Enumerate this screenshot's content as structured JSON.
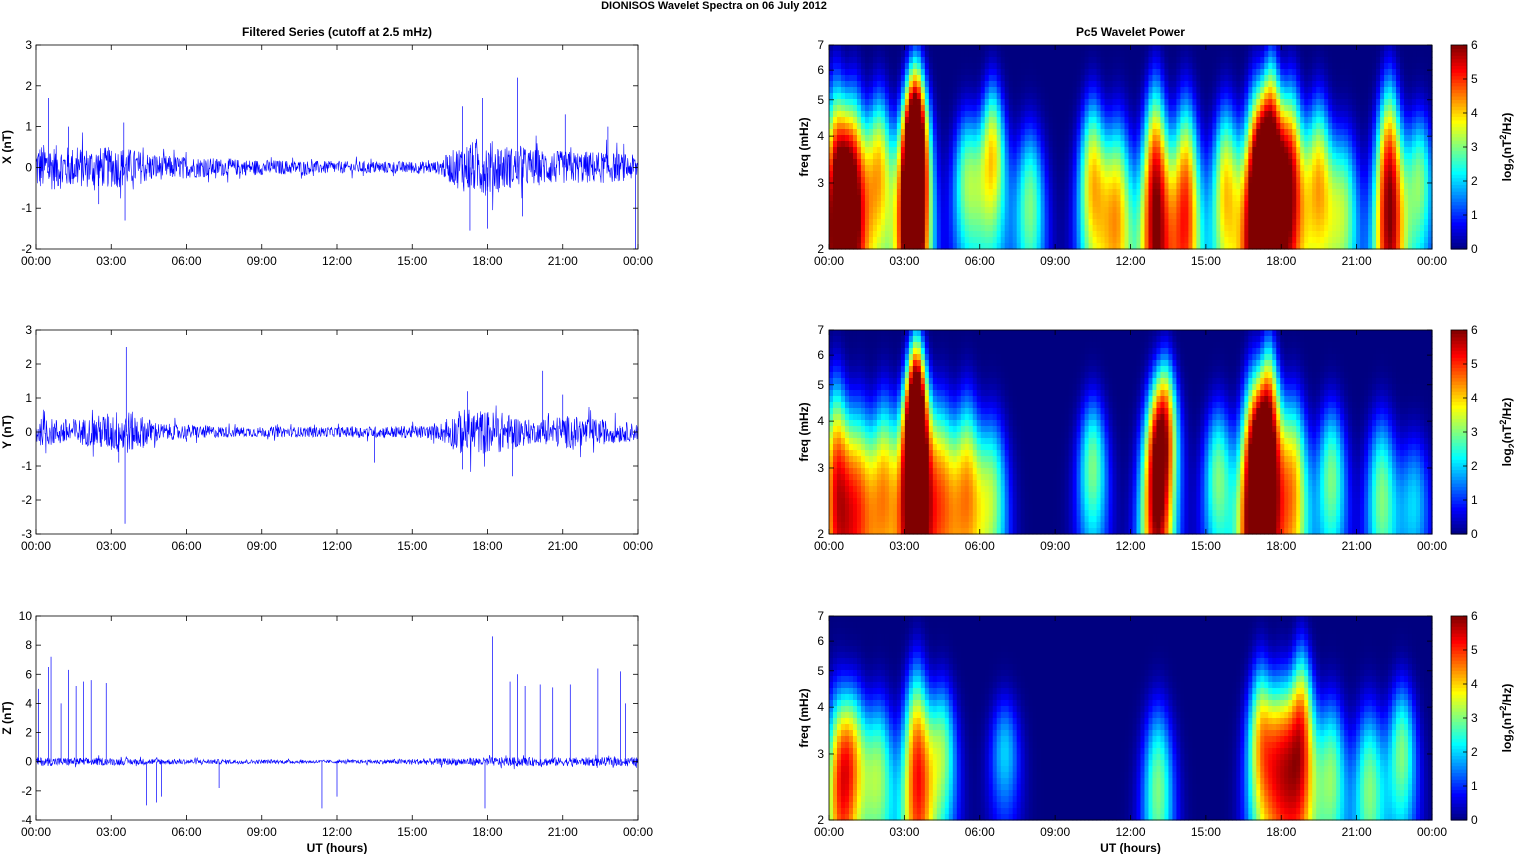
{
  "figure_title": "DIONISOS Wavelet Spectra on 06 July      2012",
  "colorbar_label": "log2(nT2/Hz)",
  "chart_data": [
    {
      "type": "line",
      "title": "Filtered Series (cutoff at 2.5 mHz)",
      "ylabel": "X (nT)",
      "xlabel": "",
      "ylim": [
        -2,
        3
      ],
      "yticks": [
        "-2",
        "-1",
        "0",
        "1",
        "2",
        "3"
      ],
      "xticks": [
        "00:00",
        "03:00",
        "06:00",
        "09:00",
        "12:00",
        "15:00",
        "18:00",
        "21:00",
        "00:00"
      ],
      "xlim_hours": [
        0,
        24
      ],
      "line_color": "#0000ff",
      "envelope": [
        {
          "t": 0,
          "amp": 0.6
        },
        {
          "t": 1.5,
          "amp": 0.5
        },
        {
          "t": 3.5,
          "amp": 0.5
        },
        {
          "t": 5,
          "amp": 0.3
        },
        {
          "t": 8,
          "amp": 0.2
        },
        {
          "t": 12,
          "amp": 0.15
        },
        {
          "t": 16,
          "amp": 0.15
        },
        {
          "t": 17,
          "amp": 0.6
        },
        {
          "t": 18,
          "amp": 0.7
        },
        {
          "t": 19,
          "amp": 0.5
        },
        {
          "t": 21,
          "amp": 0.4
        },
        {
          "t": 22.5,
          "amp": 0.4
        },
        {
          "t": 24,
          "amp": 0.3
        }
      ],
      "spikes": [
        {
          "t": 0.5,
          "v": 1.7
        },
        {
          "t": 1.3,
          "v": 1.0
        },
        {
          "t": 2.5,
          "v": -0.9
        },
        {
          "t": 3.5,
          "v": 1.1
        },
        {
          "t": 3.55,
          "v": -1.3
        },
        {
          "t": 17.0,
          "v": 1.5
        },
        {
          "t": 17.3,
          "v": -1.55
        },
        {
          "t": 17.8,
          "v": 1.7
        },
        {
          "t": 18.0,
          "v": -1.5
        },
        {
          "t": 19.2,
          "v": 2.2
        },
        {
          "t": 19.4,
          "v": -1.2
        },
        {
          "t": 21.1,
          "v": 1.3
        },
        {
          "t": 22.8,
          "v": 1.0
        },
        {
          "t": 23.9,
          "v": -2.0
        }
      ]
    },
    {
      "type": "line",
      "title": "",
      "ylabel": "Y (nT)",
      "xlabel": "",
      "ylim": [
        -3,
        3
      ],
      "yticks": [
        "-3",
        "-2",
        "-1",
        "0",
        "1",
        "2",
        "3"
      ],
      "xticks": [
        "00:00",
        "03:00",
        "06:00",
        "09:00",
        "12:00",
        "15:00",
        "18:00",
        "21:00",
        "00:00"
      ],
      "xlim_hours": [
        0,
        24
      ],
      "line_color": "#0000ff",
      "envelope": [
        {
          "t": 0,
          "amp": 0.4
        },
        {
          "t": 2,
          "amp": 0.4
        },
        {
          "t": 3.5,
          "amp": 0.7
        },
        {
          "t": 5,
          "amp": 0.25
        },
        {
          "t": 8,
          "amp": 0.15
        },
        {
          "t": 12,
          "amp": 0.15
        },
        {
          "t": 16,
          "amp": 0.2
        },
        {
          "t": 17,
          "amp": 0.7
        },
        {
          "t": 18.5,
          "amp": 0.6
        },
        {
          "t": 20,
          "amp": 0.3
        },
        {
          "t": 21,
          "amp": 0.5
        },
        {
          "t": 24,
          "amp": 0.25
        }
      ],
      "spikes": [
        {
          "t": 3.6,
          "v": 2.5
        },
        {
          "t": 3.55,
          "v": -2.7
        },
        {
          "t": 3.3,
          "v": -0.9
        },
        {
          "t": 17.2,
          "v": 1.2
        },
        {
          "t": 17.0,
          "v": -1.1
        },
        {
          "t": 19.0,
          "v": -1.3
        },
        {
          "t": 20.2,
          "v": 1.8
        },
        {
          "t": 21.0,
          "v": 1.1
        },
        {
          "t": 13.5,
          "v": -0.9
        }
      ]
    },
    {
      "type": "line",
      "title": "",
      "ylabel": "Z (nT)",
      "xlabel": "UT (hours)",
      "ylim": [
        -4,
        10
      ],
      "yticks": [
        "-4",
        "-2",
        "0",
        "2",
        "4",
        "6",
        "8",
        "10"
      ],
      "xticks": [
        "00:00",
        "03:00",
        "06:00",
        "09:00",
        "12:00",
        "15:00",
        "18:00",
        "21:00",
        "00:00"
      ],
      "xlim_hours": [
        0,
        24
      ],
      "line_color": "#0000ff",
      "envelope": [
        {
          "t": 0,
          "amp": 0.3
        },
        {
          "t": 5,
          "amp": 0.2
        },
        {
          "t": 12,
          "amp": 0.1
        },
        {
          "t": 18,
          "amp": 0.3
        },
        {
          "t": 24,
          "amp": 0.3
        }
      ],
      "spikes": [
        {
          "t": 0.1,
          "v": 5.0
        },
        {
          "t": 0.5,
          "v": 6.5
        },
        {
          "t": 0.6,
          "v": 7.2
        },
        {
          "t": 1.0,
          "v": 4.0
        },
        {
          "t": 1.3,
          "v": 6.3
        },
        {
          "t": 1.6,
          "v": 5.2
        },
        {
          "t": 1.9,
          "v": 5.5
        },
        {
          "t": 2.2,
          "v": 5.6
        },
        {
          "t": 2.8,
          "v": 5.4
        },
        {
          "t": 4.4,
          "v": -3.0
        },
        {
          "t": 4.8,
          "v": -2.8
        },
        {
          "t": 5.0,
          "v": -2.4
        },
        {
          "t": 7.3,
          "v": -1.8
        },
        {
          "t": 11.4,
          "v": -3.2
        },
        {
          "t": 12.0,
          "v": -2.4
        },
        {
          "t": 17.9,
          "v": -3.2
        },
        {
          "t": 18.2,
          "v": 8.6
        },
        {
          "t": 18.9,
          "v": 5.5
        },
        {
          "t": 19.2,
          "v": 6.0
        },
        {
          "t": 19.5,
          "v": 5.2
        },
        {
          "t": 20.1,
          "v": 5.3
        },
        {
          "t": 20.6,
          "v": 5.1
        },
        {
          "t": 21.3,
          "v": 5.3
        },
        {
          "t": 22.4,
          "v": 6.4
        },
        {
          "t": 23.3,
          "v": 6.2
        },
        {
          "t": 23.5,
          "v": 4.0
        }
      ]
    },
    {
      "type": "heatmap",
      "title": "Pc5 Wavelet Power",
      "ylabel": "freq (mHz)",
      "xlabel": "",
      "yticks": [
        "2",
        "3",
        "4",
        "5",
        "6",
        "7"
      ],
      "ylim_mhz": [
        2,
        7
      ],
      "xticks": [
        "00:00",
        "03:00",
        "06:00",
        "09:00",
        "12:00",
        "15:00",
        "18:00",
        "21:00",
        "00:00"
      ],
      "xlim_hours": [
        0,
        24
      ],
      "colorbar_ticks": [
        "0",
        "1",
        "2",
        "3",
        "4",
        "5",
        "6"
      ],
      "colorbar_range": [
        0,
        6
      ],
      "colormap": "jet",
      "bursts": [
        {
          "t": 0.3,
          "f": 2.5,
          "p": 6
        },
        {
          "t": 1.0,
          "f": 2.8,
          "p": 5
        },
        {
          "t": 2.0,
          "f": 3.2,
          "p": 4
        },
        {
          "t": 3.3,
          "f": 2.6,
          "p": 6
        },
        {
          "t": 3.5,
          "f": 4.0,
          "p": 5
        },
        {
          "t": 5.5,
          "f": 3.0,
          "p": 3
        },
        {
          "t": 6.5,
          "f": 3.5,
          "p": 4
        },
        {
          "t": 8.0,
          "f": 2.6,
          "p": 3
        },
        {
          "t": 10.5,
          "f": 3.0,
          "p": 4
        },
        {
          "t": 11.5,
          "f": 2.4,
          "p": 4
        },
        {
          "t": 13.0,
          "f": 2.5,
          "p": 6
        },
        {
          "t": 14.2,
          "f": 2.5,
          "p": 5
        },
        {
          "t": 15.8,
          "f": 2.8,
          "p": 4
        },
        {
          "t": 17.0,
          "f": 2.4,
          "p": 6
        },
        {
          "t": 17.6,
          "f": 3.5,
          "p": 6
        },
        {
          "t": 18.4,
          "f": 3.0,
          "p": 5
        },
        {
          "t": 19.5,
          "f": 3.0,
          "p": 4
        },
        {
          "t": 20.5,
          "f": 2.5,
          "p": 3
        },
        {
          "t": 22.3,
          "f": 2.6,
          "p": 6
        },
        {
          "t": 23.5,
          "f": 3.0,
          "p": 3
        }
      ]
    },
    {
      "type": "heatmap",
      "title": "",
      "ylabel": "freq (mHz)",
      "xlabel": "",
      "yticks": [
        "2",
        "3",
        "4",
        "5",
        "6",
        "7"
      ],
      "ylim_mhz": [
        2,
        7
      ],
      "xticks": [
        "00:00",
        "03:00",
        "06:00",
        "09:00",
        "12:00",
        "15:00",
        "18:00",
        "21:00",
        "00:00"
      ],
      "xlim_hours": [
        0,
        24
      ],
      "colorbar_ticks": [
        "0",
        "1",
        "2",
        "3",
        "4",
        "5",
        "6"
      ],
      "colorbar_range": [
        0,
        6
      ],
      "colormap": "jet",
      "bursts": [
        {
          "t": 0.3,
          "f": 2.6,
          "p": 5
        },
        {
          "t": 1.2,
          "f": 2.4,
          "p": 4
        },
        {
          "t": 2.2,
          "f": 2.6,
          "p": 4
        },
        {
          "t": 3.4,
          "f": 2.6,
          "p": 6
        },
        {
          "t": 3.5,
          "f": 4.5,
          "p": 5
        },
        {
          "t": 4.5,
          "f": 2.5,
          "p": 4
        },
        {
          "t": 5.5,
          "f": 2.6,
          "p": 4
        },
        {
          "t": 6.5,
          "f": 2.5,
          "p": 3
        },
        {
          "t": 10.5,
          "f": 3.0,
          "p": 3
        },
        {
          "t": 13.0,
          "f": 2.4,
          "p": 5
        },
        {
          "t": 13.4,
          "f": 4.0,
          "p": 4
        },
        {
          "t": 15.5,
          "f": 2.8,
          "p": 3
        },
        {
          "t": 16.9,
          "f": 2.4,
          "p": 6
        },
        {
          "t": 17.5,
          "f": 3.5,
          "p": 6
        },
        {
          "t": 18.5,
          "f": 2.6,
          "p": 4
        },
        {
          "t": 20.0,
          "f": 2.8,
          "p": 3
        },
        {
          "t": 22.0,
          "f": 2.5,
          "p": 3
        },
        {
          "t": 23.3,
          "f": 2.4,
          "p": 2
        }
      ]
    },
    {
      "type": "heatmap",
      "title": "",
      "ylabel": "freq (mHz)",
      "xlabel": "UT (hours)",
      "yticks": [
        "2",
        "3",
        "4",
        "5",
        "6",
        "7"
      ],
      "ylim_mhz": [
        2,
        7
      ],
      "xticks": [
        "00:00",
        "03:00",
        "06:00",
        "09:00",
        "12:00",
        "15:00",
        "18:00",
        "21:00",
        "00:00"
      ],
      "xlim_hours": [
        0,
        24
      ],
      "colorbar_ticks": [
        "0",
        "1",
        "2",
        "3",
        "4",
        "5",
        "6"
      ],
      "colorbar_range": [
        0,
        6
      ],
      "colormap": "jet",
      "bursts": [
        {
          "t": 0.4,
          "f": 2.4,
          "p": 4
        },
        {
          "t": 1.0,
          "f": 3.0,
          "p": 3
        },
        {
          "t": 2.0,
          "f": 2.6,
          "p": 3
        },
        {
          "t": 3.5,
          "f": 2.6,
          "p": 5
        },
        {
          "t": 4.5,
          "f": 3.0,
          "p": 3
        },
        {
          "t": 7.0,
          "f": 3.0,
          "p": 2
        },
        {
          "t": 13.1,
          "f": 2.4,
          "p": 3
        },
        {
          "t": 17.2,
          "f": 3.2,
          "p": 4
        },
        {
          "t": 18.0,
          "f": 2.8,
          "p": 4
        },
        {
          "t": 18.8,
          "f": 3.2,
          "p": 5
        },
        {
          "t": 20.0,
          "f": 2.6,
          "p": 3
        },
        {
          "t": 21.5,
          "f": 2.4,
          "p": 3
        },
        {
          "t": 22.8,
          "f": 3.0,
          "p": 3
        }
      ]
    }
  ]
}
